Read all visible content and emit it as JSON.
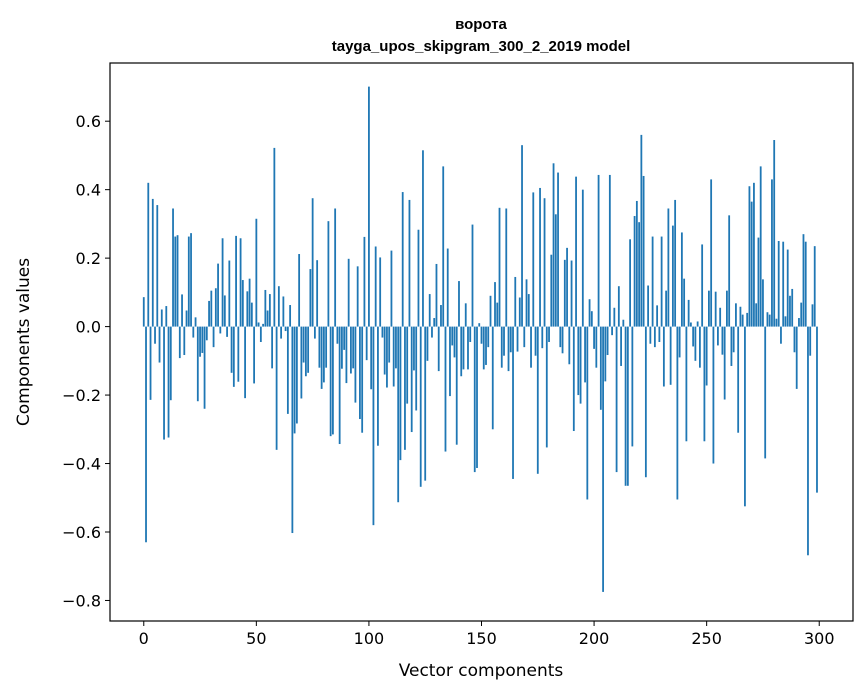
{
  "chart_data": {
    "type": "bar",
    "title": "ворота",
    "subtitle": "tayga_upos_skipgram_300_2_2019 model",
    "xlabel": "Vector components",
    "ylabel": "Components values",
    "xlim": [
      -15,
      315
    ],
    "ylim": [
      -0.86,
      0.77
    ],
    "x_ticks": [
      0,
      50,
      100,
      150,
      200,
      250,
      300
    ],
    "x_tick_labels": [
      "0",
      "50",
      "100",
      "150",
      "200",
      "250",
      "300"
    ],
    "y_ticks": [
      -0.8,
      -0.6,
      -0.4,
      -0.2,
      0.0,
      0.2,
      0.4,
      0.6
    ],
    "y_tick_labels": [
      "−0.8",
      "−0.6",
      "−0.4",
      "−0.2",
      "0.0",
      "0.2",
      "0.4",
      "0.6"
    ],
    "grid": false,
    "bar_color": "#1f77b4",
    "values": [
      0.086,
      -0.63,
      0.42,
      -0.214,
      0.373,
      -0.05,
      0.355,
      -0.105,
      0.05,
      -0.33,
      0.06,
      -0.324,
      -0.215,
      0.345,
      0.263,
      0.267,
      -0.092,
      0.094,
      -0.083,
      0.047,
      0.263,
      0.273,
      -0.032,
      0.027,
      -0.218,
      -0.088,
      -0.077,
      -0.24,
      -0.04,
      0.075,
      0.105,
      -0.06,
      0.112,
      0.184,
      -0.02,
      0.258,
      0.091,
      -0.03,
      0.193,
      -0.135,
      -0.176,
      0.265,
      -0.161,
      0.258,
      0.136,
      -0.209,
      0.103,
      0.14,
      0.07,
      -0.166,
      0.315,
      0.012,
      -0.045,
      0.008,
      0.107,
      0.047,
      0.095,
      -0.122,
      0.522,
      -0.36,
      0.118,
      -0.035,
      0.088,
      -0.013,
      -0.255,
      0.063,
      -0.603,
      -0.312,
      -0.283,
      0.212,
      -0.21,
      -0.105,
      -0.145,
      -0.135,
      0.168,
      0.375,
      -0.035,
      0.194,
      -0.12,
      -0.182,
      -0.163,
      -0.12,
      0.308,
      -0.32,
      -0.315,
      0.345,
      -0.05,
      -0.343,
      -0.123,
      -0.068,
      -0.165,
      0.198,
      -0.137,
      -0.122,
      -0.222,
      0.176,
      -0.27,
      -0.31,
      0.262,
      -0.098,
      0.701,
      -0.183,
      -0.58,
      0.234,
      -0.348,
      0.202,
      -0.032,
      -0.14,
      -0.178,
      -0.105,
      0.222,
      -0.175,
      -0.122,
      -0.513,
      -0.39,
      0.393,
      -0.36,
      -0.225,
      0.37,
      -0.308,
      -0.128,
      -0.245,
      0.283,
      -0.468,
      0.515,
      -0.45,
      -0.1,
      0.095,
      -0.032,
      0.025,
      0.183,
      -0.13,
      0.063,
      0.468,
      -0.365,
      0.228,
      -0.203,
      -0.055,
      -0.09,
      -0.345,
      0.133,
      -0.145,
      -0.125,
      0.068,
      -0.125,
      -0.045,
      0.298,
      -0.425,
      -0.413,
      0.01,
      -0.05,
      -0.125,
      -0.112,
      -0.06,
      0.09,
      -0.3,
      0.13,
      0.07,
      0.347,
      -0.12,
      -0.085,
      0.345,
      -0.13,
      -0.075,
      -0.445,
      0.145,
      -0.073,
      0.085,
      0.53,
      -0.06,
      0.138,
      0.095,
      -0.12,
      0.392,
      -0.085,
      -0.43,
      0.405,
      -0.063,
      0.375,
      -0.353,
      -0.045,
      0.21,
      0.477,
      0.328,
      0.45,
      -0.06,
      -0.078,
      0.195,
      0.23,
      -0.11,
      0.193,
      -0.305,
      0.438,
      -0.2,
      -0.225,
      0.4,
      -0.163,
      -0.505,
      0.08,
      0.045,
      -0.065,
      -0.12,
      0.443,
      -0.243,
      -0.775,
      -0.16,
      -0.083,
      0.443,
      -0.025,
      0.055,
      -0.425,
      0.118,
      -0.115,
      0.02,
      -0.465,
      -0.465,
      0.255,
      -0.35,
      0.323,
      0.367,
      0.305,
      0.56,
      0.44,
      -0.44,
      0.12,
      -0.05,
      0.263,
      -0.06,
      0.062,
      -0.045,
      0.263,
      -0.175,
      0.105,
      0.345,
      -0.17,
      0.295,
      0.37,
      -0.505,
      -0.09,
      0.275,
      0.14,
      -0.335,
      0.078,
      0.012,
      -0.058,
      -0.1,
      0.015,
      -0.12,
      0.24,
      -0.335,
      -0.172,
      0.105,
      0.43,
      -0.4,
      0.102,
      -0.055,
      0.055,
      -0.082,
      -0.213,
      0.105,
      0.325,
      -0.115,
      -0.075,
      0.068,
      -0.31,
      0.058,
      0.035,
      -0.525,
      0.04,
      0.41,
      0.365,
      0.42,
      0.068,
      0.26,
      0.468,
      0.138,
      -0.385,
      0.042,
      0.035,
      0.43,
      0.545,
      0.023,
      0.25,
      -0.05,
      0.248,
      0.03,
      0.225,
      0.09,
      0.11,
      -0.075,
      -0.182,
      0.025,
      0.07,
      0.27,
      0.248,
      -0.668,
      -0.085,
      0.065,
      0.235,
      -0.485
    ]
  }
}
